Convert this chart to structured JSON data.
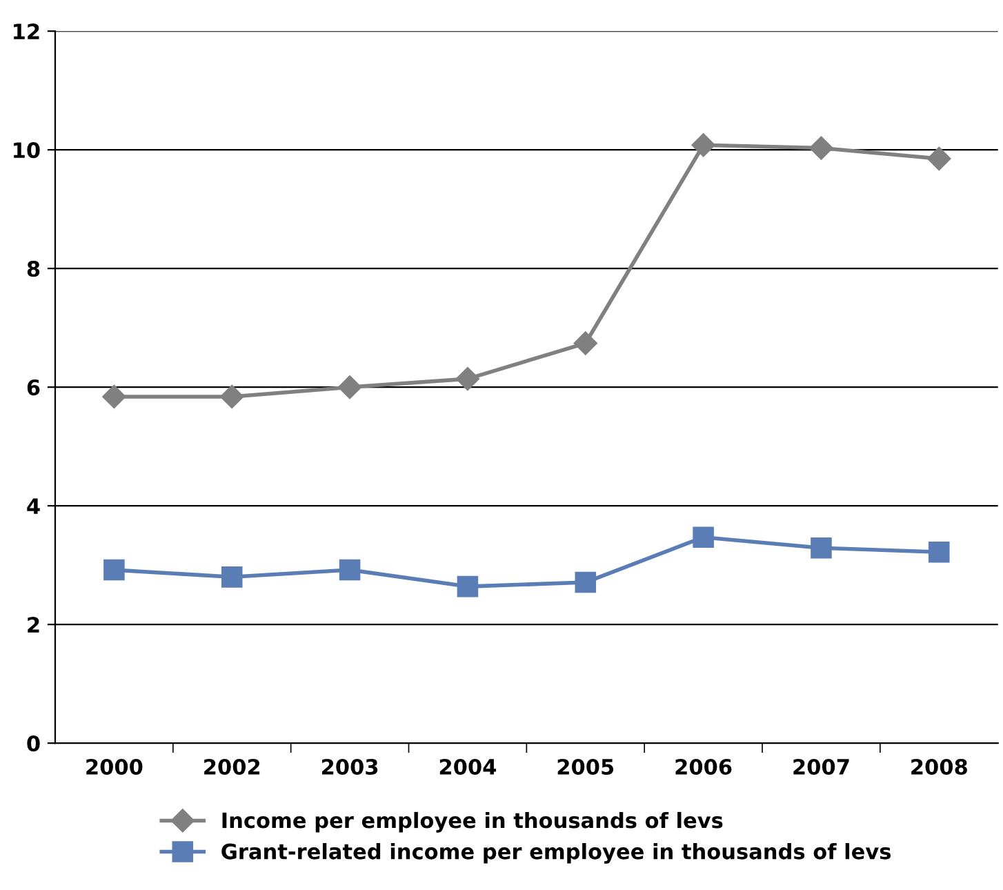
{
  "chart_data": {
    "type": "line",
    "categories": [
      "2000",
      "2002",
      "2003",
      "2004",
      "2005",
      "2006",
      "2007",
      "2008"
    ],
    "series": [
      {
        "name": "Income per employee in thousands of levs",
        "color": "#808080",
        "marker": "diamond",
        "values": [
          5.84,
          5.84,
          6.0,
          6.14,
          6.74,
          10.08,
          10.03,
          9.85
        ]
      },
      {
        "name": "Grant-related income per employee in thousands of levs",
        "color": "#5b7db5",
        "marker": "square",
        "values": [
          2.92,
          2.8,
          2.92,
          2.64,
          2.71,
          3.47,
          3.29,
          3.22
        ]
      }
    ],
    "ylim": [
      0,
      12
    ],
    "yticks": [
      0,
      2,
      4,
      6,
      8,
      10,
      12
    ],
    "grid": "y",
    "legend": "bottom",
    "line_style": "solid"
  }
}
